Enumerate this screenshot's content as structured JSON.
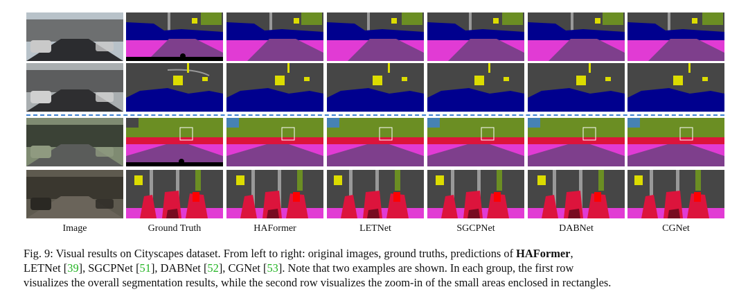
{
  "columns": [
    "Image",
    "Ground Truth",
    "HAFormer",
    "LETNet",
    "SGCPNet",
    "DABNet",
    "CGNet"
  ],
  "caption": {
    "p1": "Fig. 9: Visual results on Cityscapes dataset. From left to right: original images, ground truths, predictions of ",
    "bold": "HAFormer",
    "p2": ",",
    "p3": "LETNet [",
    "r1": "39",
    "p4": "], SGCPNet [",
    "r2": "51",
    "p5": "], DABNet [",
    "r3": "52",
    "p6": "], CGNet [",
    "r4": "53",
    "p7": "]. Note that two examples are shown. In each group, the first row",
    "line3": "visualizes the overall segmentation results, while the second row visualizes the zoom-in of the small areas enclosed in rectangles."
  },
  "colors": {
    "road": "#7e3f8c",
    "sidewalk": "#e13bd4",
    "building": "#464646",
    "car": "#00008e",
    "vegetation": "#6b8e23",
    "sign": "#dcdc00",
    "pole": "#999999",
    "sky": "#4682b4",
    "person": "#dc143c",
    "rider": "#ff0000",
    "bicycle": "#770b20",
    "divider_line": "#3b7fd1"
  }
}
